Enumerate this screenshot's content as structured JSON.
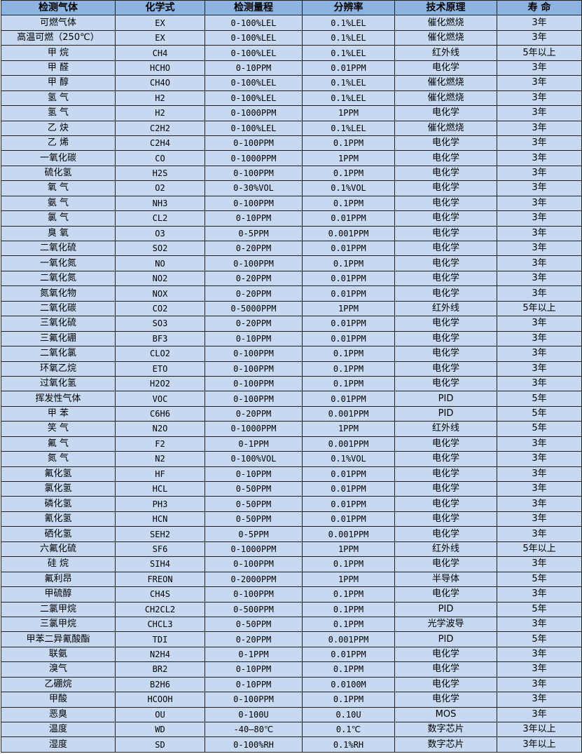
{
  "table": {
    "headers": [
      "检测气体",
      "化学式",
      "检测量程",
      "分辨率",
      "技术原理",
      "寿 命"
    ],
    "rows": [
      [
        "可燃气体",
        "EX",
        "0-100%LEL",
        "0.1%LEL",
        "催化燃烧",
        "3年"
      ],
      [
        "高温可燃（250℃）",
        "EX",
        "0-100%LEL",
        "0.1%LEL",
        "催化燃烧",
        "3年"
      ],
      [
        "甲 烷",
        "CH4",
        "0-100%LEL",
        "0.1%LEL",
        "红外线",
        "5年以上"
      ],
      [
        "甲 醛",
        "HCHO",
        "0-10PPM",
        "0.01PPM",
        "电化学",
        "3年"
      ],
      [
        "甲 醇",
        "CH4O",
        "0-100%LEL",
        "0.1%LEL",
        "催化燃烧",
        "3年"
      ],
      [
        "氢 气",
        "H2",
        "0-100%LEL",
        "0.1%LEL",
        "催化燃烧",
        "3年"
      ],
      [
        "氢 气",
        "H2",
        "0-1000PPM",
        "1PPM",
        "电化学",
        "3年"
      ],
      [
        "乙 炔",
        "C2H2",
        "0-100%LEL",
        "0.1%LEL",
        "催化燃烧",
        "3年"
      ],
      [
        "乙 烯",
        "C2H4",
        "0-100PPM",
        "0.1PPM",
        "电化学",
        "3年"
      ],
      [
        "一氧化碳",
        "CO",
        "0-1000PPM",
        "1PPM",
        "电化学",
        "3年"
      ],
      [
        "硫化氢",
        "H2S",
        "0-100PPM",
        "0.1PPM",
        "电化学",
        "3年"
      ],
      [
        "氧 气",
        "O2",
        "0-30%VOL",
        "0.1%VOL",
        "电化学",
        "3年"
      ],
      [
        "氨 气",
        "NH3",
        "0-100PPM",
        "0.1PPM",
        "电化学",
        "3年"
      ],
      [
        "氯 气",
        "CL2",
        "0-10PPM",
        "0.01PPM",
        "电化学",
        "3年"
      ],
      [
        "臭 氧",
        "O3",
        "0-5PPM",
        "0.001PPM",
        "电化学",
        "3年"
      ],
      [
        "二氧化硫",
        "SO2",
        "0-20PPM",
        "0.01PPM",
        "电化学",
        "3年"
      ],
      [
        "一氧化氮",
        "NO",
        "0-100PPM",
        "0.1PPM",
        "电化学",
        "3年"
      ],
      [
        "二氧化氮",
        "NO2",
        "0-20PPM",
        "0.01PPM",
        "电化学",
        "3年"
      ],
      [
        "氮氧化物",
        "NOX",
        "0-20PPM",
        "0.01PPM",
        "电化学",
        "3年"
      ],
      [
        "二氧化碳",
        "CO2",
        "0-5000PPM",
        "1PPM",
        "红外线",
        "5年以上"
      ],
      [
        "三氧化硫",
        "SO3",
        "0-20PPM",
        "0.01PPM",
        "电化学",
        "3年"
      ],
      [
        "三氟化硼",
        "BF3",
        "0-10PPM",
        "0.01PPM",
        "电化学",
        "3年"
      ],
      [
        "二氧化氯",
        "CLO2",
        "0-100PPM",
        "0.1PPM",
        "电化学",
        "3年"
      ],
      [
        "环氧乙烷",
        "ETO",
        "0-100PPM",
        "0.1PPM",
        "电化学",
        "3年"
      ],
      [
        "过氧化氢",
        "H2O2",
        "0-100PPM",
        "0.1PPM",
        "电化学",
        "3年"
      ],
      [
        "挥发性气体",
        "VOC",
        "0-100PPM",
        "0.01PPM",
        "PID",
        "5年"
      ],
      [
        "甲 苯",
        "C6H6",
        "0-20PPM",
        "0.001PPM",
        "PID",
        "5年"
      ],
      [
        "笑 气",
        "N2O",
        "0-1000PPM",
        "1PPM",
        "红外线",
        "5年"
      ],
      [
        "氟 气",
        "F2",
        "0-1PPM",
        "0.001PPM",
        "电化学",
        "3年"
      ],
      [
        "氮 气",
        "N2",
        "0-100%VOL",
        "0.1%VOL",
        "电化学",
        "3年"
      ],
      [
        "氟化氢",
        "HF",
        "0-10PPM",
        "0.01PPM",
        "电化学",
        "3年"
      ],
      [
        "氯化氢",
        "HCL",
        "0-50PPM",
        "0.01PPM",
        "电化学",
        "3年"
      ],
      [
        "磷化氢",
        "PH3",
        "0-50PPM",
        "0.01PPM",
        "电化学",
        "3年"
      ],
      [
        "氰化氢",
        "HCN",
        "0-50PPM",
        "0.01PPM",
        "电化学",
        "3年"
      ],
      [
        "硒化氢",
        "SEH2",
        "0-5PPM",
        "0.001PPM",
        "电化学",
        "3年"
      ],
      [
        "六氟化硫",
        "SF6",
        "0-1000PPM",
        "1PPM",
        "红外线",
        "5年以上"
      ],
      [
        "硅 烷",
        "SIH4",
        "0-100PPM",
        "0.1PPM",
        "电化学",
        "3年"
      ],
      [
        "氟利昂",
        "FREON",
        "0-2000PPM",
        "1PPM",
        "半导体",
        "5年"
      ],
      [
        "甲硫醇",
        "CH4S",
        "0-100PPM",
        "0.1PPM",
        "电化学",
        "3年"
      ],
      [
        "二氯甲烷",
        "CH2CL2",
        "0-500PPM",
        "0.1PPM",
        "PID",
        "5年"
      ],
      [
        "三氯甲烷",
        "CHCL3",
        "0-50PPM",
        "0.1PPM",
        "光学波导",
        "3年"
      ],
      [
        "甲苯二异氰酸酯",
        "TDI",
        "0-20PPM",
        "0.001PPM",
        "PID",
        "5年"
      ],
      [
        "联氨",
        "N2H4",
        "0-1PPM",
        "0.01PPM",
        "电化学",
        "3年"
      ],
      [
        "溴气",
        "BR2",
        "0-10PPM",
        "0.1PPM",
        "电化学",
        "3年"
      ],
      [
        "乙硼烷",
        "B2H6",
        "0-10PPM",
        "0.0100M",
        "电化学",
        "3年"
      ],
      [
        "甲酸",
        "HCOOH",
        "0-100PPM",
        "0.1PPM",
        "电化学",
        "3年"
      ],
      [
        "恶臭",
        "OU",
        "0-100U",
        "0.10U",
        "MOS",
        "3年"
      ],
      [
        "温度",
        "WD",
        "-40—80℃",
        "0.1℃",
        "数字芯片",
        "3年以上"
      ],
      [
        "湿度",
        "SD",
        "0-100%RH",
        "0.1%RH",
        "数字芯片",
        "3年以上"
      ]
    ]
  },
  "colors": {
    "header_bg": "#8db3e2",
    "row_bg": "#c6d9f1",
    "border": "#1f1f1f"
  }
}
